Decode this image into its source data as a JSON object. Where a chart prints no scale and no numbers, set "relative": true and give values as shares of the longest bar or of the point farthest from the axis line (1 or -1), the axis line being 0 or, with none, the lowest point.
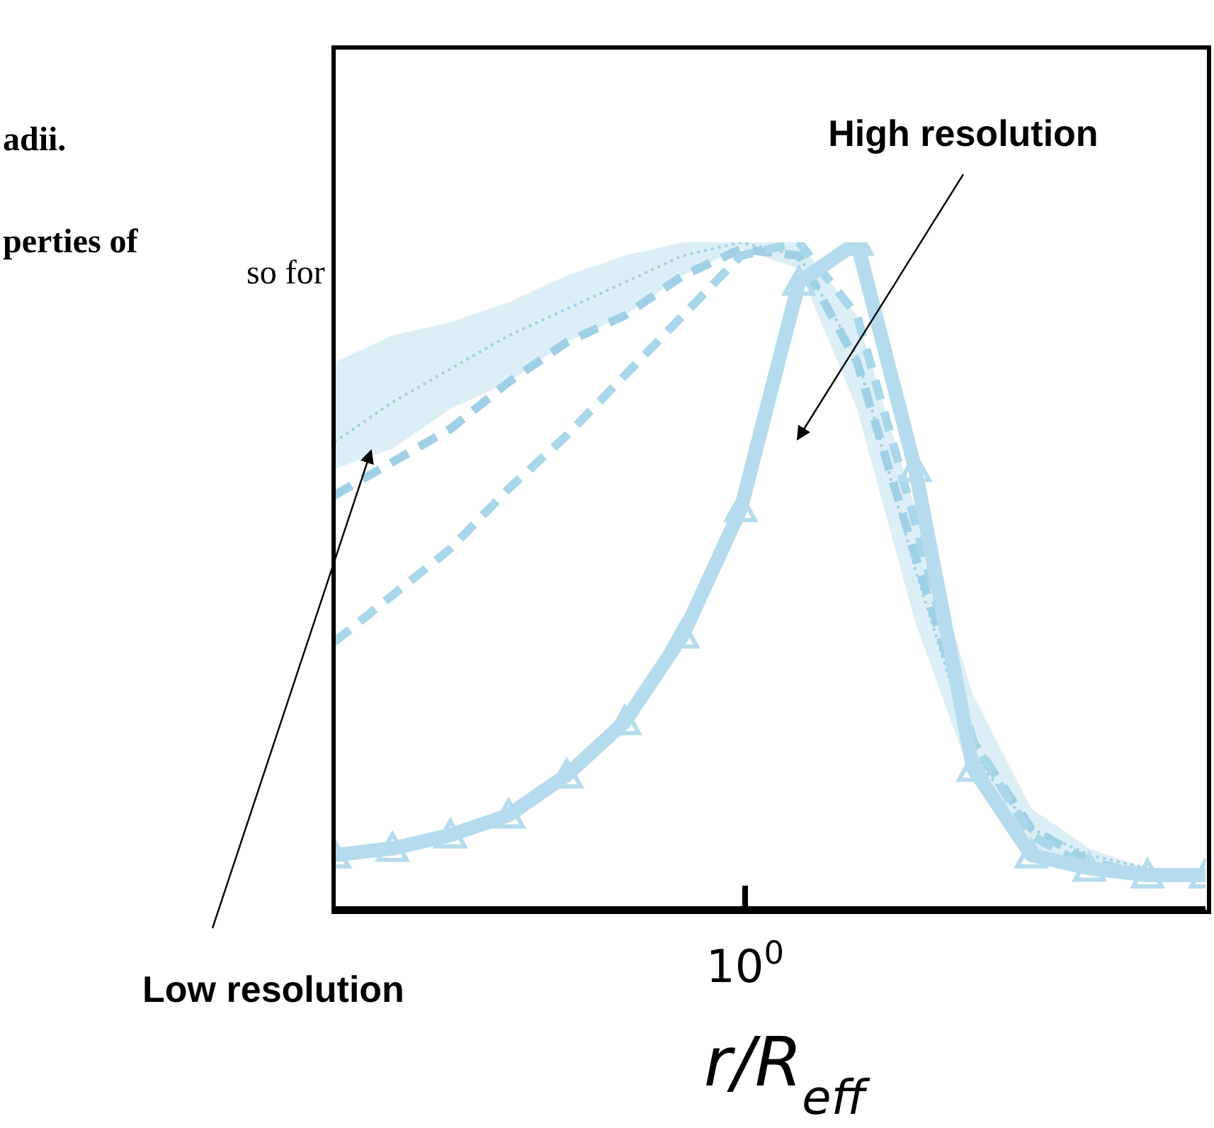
{
  "chart_data": {
    "type": "line",
    "relative": true,
    "xlabel": "r/R$_{eff}$",
    "categories": [
      null,
      null,
      null,
      null,
      null,
      null,
      null,
      null,
      null,
      null,
      null,
      null,
      null,
      null,
      null,
      null
    ],
    "series": [
      {
        "color": "#9fd0e6",
        "line_style": "dotted",
        "marker": "none",
        "values": [
          0.7,
          0.76,
          0.81,
          0.86,
          0.9,
          0.94,
          0.98,
          1.0,
          0.98,
          0.83,
          0.51,
          0.23,
          0.12,
          0.08,
          0.06,
          0.05
        ],
        "lower": [
          0.66,
          0.69,
          0.75,
          0.79,
          0.85,
          0.89,
          0.95,
          0.99,
          0.96,
          0.75,
          0.43,
          0.19,
          0.09,
          0.06,
          0.05,
          0.04
        ],
        "upper": [
          0.82,
          0.86,
          0.88,
          0.91,
          0.95,
          0.98,
          1.0,
          1.0,
          1.0,
          0.89,
          0.6,
          0.32,
          0.15,
          0.09,
          0.06,
          0.05
        ]
      },
      {
        "color": "#9fd0e6",
        "line_style": "dashed",
        "marker": "none",
        "values": [
          0.62,
          0.67,
          0.72,
          0.79,
          0.85,
          0.89,
          0.95,
          0.99,
          0.98,
          0.82,
          0.53,
          0.25,
          0.12,
          0.07,
          0.05,
          0.05
        ]
      },
      {
        "color": "#a8d6ea",
        "line_style": "dashed",
        "marker": "none",
        "values": [
          0.4,
          0.47,
          0.54,
          0.63,
          0.71,
          0.8,
          0.89,
          0.98,
          1.0,
          0.89,
          0.58,
          0.25,
          0.11,
          0.06,
          0.05,
          0.05
        ]
      },
      {
        "color": "#b5dcee",
        "line_style": "solid",
        "marker": "triangle",
        "values": [
          0.08,
          0.09,
          0.11,
          0.14,
          0.2,
          0.28,
          0.41,
          0.6,
          0.94,
          1.0,
          0.66,
          0.21,
          0.08,
          0.06,
          0.05,
          0.05
        ]
      }
    ],
    "annotations": [
      "High resolution",
      "Low resolution",
      "10$^{0}$",
      "adii.",
      "perties of",
      "so for"
    ]
  }
}
